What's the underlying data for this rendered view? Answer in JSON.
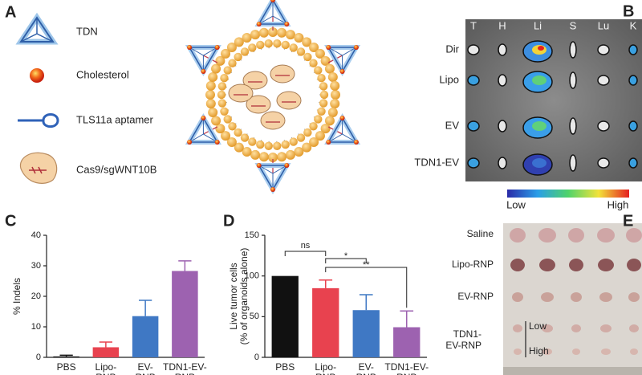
{
  "panels": {
    "A": {
      "label": "A",
      "legend": [
        "TDN",
        "Cholesterol",
        "TLS11a aptamer",
        "Cas9/sgWNT10B"
      ]
    },
    "B": {
      "label": "B",
      "organs": [
        "T",
        "H",
        "Li",
        "S",
        "Lu",
        "K"
      ],
      "groups": [
        "Dir",
        "Lipo",
        "EV",
        "TDN1-EV"
      ],
      "colorbar": {
        "low": "Low",
        "high": "High"
      }
    },
    "E": {
      "label": "E",
      "groups": [
        "Saline",
        "Lipo-RNP",
        "EV-RNP",
        "TDN1-EV-RNP"
      ],
      "subgroups": [
        "Low",
        "High"
      ]
    }
  },
  "chart_data": [
    {
      "type": "bar",
      "panel_label": "C",
      "ylabel": "% Indels",
      "categories": [
        "PBS",
        "Lipo-RNP",
        "EV-RNP",
        "TDN1-EV-RNP"
      ],
      "values": [
        0.3,
        3.3,
        13.5,
        28.3
      ],
      "errors": [
        0.4,
        1.7,
        5.2,
        3.3
      ],
      "colors": [
        "#111111",
        "#e8424f",
        "#3f78c4",
        "#9d62b0"
      ],
      "ylim": [
        0,
        40
      ],
      "yticks": [
        0,
        10,
        20,
        30,
        40
      ]
    },
    {
      "type": "bar",
      "panel_label": "D",
      "ylabel": [
        "Live tumor cells",
        "(% of organoids alone)"
      ],
      "categories": [
        "PBS",
        "Lipo-RNP",
        "EV-RNP",
        "TDN1-EV-RNP"
      ],
      "values": [
        100,
        85,
        58,
        37
      ],
      "errors": [
        null,
        10,
        19,
        20
      ],
      "colors": [
        "#111111",
        "#e8424f",
        "#3f78c4",
        "#9d62b0"
      ],
      "ylim": [
        0,
        150
      ],
      "yticks": [
        0,
        50,
        100,
        150
      ],
      "annotations": [
        "ns",
        "*",
        "**"
      ]
    }
  ]
}
